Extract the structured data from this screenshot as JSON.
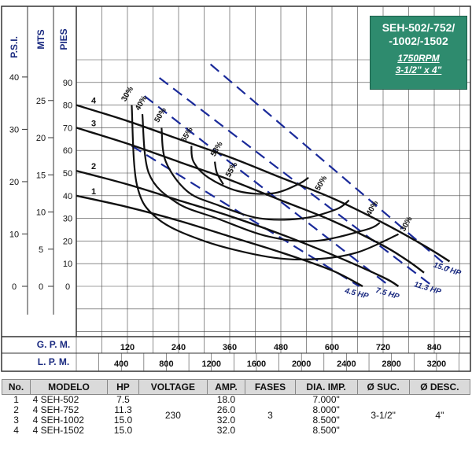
{
  "title": {
    "models": [
      "SEH-502/-752/",
      "-1002/-1502"
    ],
    "speed": "1750RPM",
    "size": "3-1/2\" x 4\""
  },
  "chart_data": {
    "type": "line",
    "y_axes": [
      {
        "label": "P.S.I.",
        "ticks": [
          0,
          10,
          20,
          30,
          40
        ]
      },
      {
        "label": "MTS",
        "ticks": [
          0,
          5,
          10,
          15,
          20,
          25
        ]
      },
      {
        "label": "PIES",
        "ticks": [
          0,
          10,
          20,
          30,
          40,
          50,
          60,
          70,
          80,
          90
        ]
      }
    ],
    "ylim": [
      0,
      102
    ],
    "x_axes": [
      {
        "label": "G. P. M.",
        "ticks": [
          120,
          240,
          360,
          480,
          600,
          720,
          840
        ]
      },
      {
        "label": "L. P. M.",
        "ticks": [
          400,
          800,
          1200,
          1600,
          2000,
          2400,
          2800,
          3200
        ]
      }
    ],
    "xlim_gpm": [
      0,
      960
    ],
    "grid": true,
    "series": [
      {
        "name": "1",
        "x": [
          0,
          120,
          240,
          360,
          480,
          600,
          672
        ],
        "y": [
          40,
          35,
          29,
          22,
          15,
          7,
          0
        ]
      },
      {
        "name": "2",
        "x": [
          0,
          120,
          240,
          360,
          480,
          600,
          720,
          756
        ],
        "y": [
          51,
          45,
          38,
          31,
          23,
          14,
          4,
          0
        ]
      },
      {
        "name": "3",
        "x": [
          0,
          120,
          240,
          360,
          480,
          600,
          720,
          780,
          816
        ],
        "y": [
          70,
          63,
          55,
          47,
          38,
          29,
          18,
          11,
          6
        ]
      },
      {
        "name": "4",
        "x": [
          0,
          120,
          240,
          360,
          480,
          600,
          720,
          816,
          876
        ],
        "y": [
          80,
          73,
          65,
          57,
          48,
          39,
          28,
          18,
          11
        ]
      }
    ],
    "efficiency_curves": [
      {
        "label": "30%",
        "x": [
          130,
          142,
          190,
          300,
          450,
          560,
          660,
          756
        ],
        "y": [
          80,
          45,
          30,
          20,
          13,
          12,
          15,
          23
        ]
      },
      {
        "label": "40%",
        "x": [
          155,
          170,
          235,
          330,
          450,
          560,
          680,
          712
        ],
        "y": [
          76,
          50,
          37,
          30,
          22,
          20,
          25,
          28
        ]
      },
      {
        "label": "50%",
        "x": [
          200,
          210,
          260,
          330,
          430,
          530,
          610,
          640
        ],
        "y": [
          70,
          55,
          42,
          36,
          30,
          30,
          34,
          38
        ]
      },
      {
        "label": "55%",
        "x": [
          270,
          275,
          310,
          380,
          460,
          520,
          545
        ],
        "y": [
          62,
          55,
          48,
          42,
          41,
          45,
          48
        ]
      },
      {
        "label": "58%",
        "x": [
          325,
          330,
          345
        ],
        "y": [
          55,
          50,
          45
        ]
      }
    ],
    "hp_lines": [
      {
        "label": "4.5 HP",
        "x": [
          130,
          664
        ],
        "y": [
          62,
          0
        ]
      },
      {
        "label": "7.5 HP",
        "x": [
          160,
          736
        ],
        "y": [
          84,
          0
        ]
      },
      {
        "label": "11.3 HP",
        "x": [
          195,
          830
        ],
        "y": [
          92,
          1
        ]
      },
      {
        "label": "15.0 HP",
        "x": [
          315,
          876
        ],
        "y": [
          98,
          8
        ]
      }
    ]
  },
  "table": {
    "headers": [
      "No.",
      "MODELO",
      "HP",
      "VOLTAGE",
      "AMP.",
      "FASES",
      "DIA. IMP.",
      "Ø SUC.",
      "Ø DESC."
    ],
    "rows": [
      [
        "1",
        "4 SEH-502",
        "7.5",
        "18.0",
        "7.000\""
      ],
      [
        "2",
        "4 SEH-752",
        "11.3",
        "26.0",
        "8.000\""
      ],
      [
        "3",
        "4 SEH-1002",
        "15.0",
        "32.0",
        "8.500\""
      ],
      [
        "4",
        "4 SEH-1502",
        "15.0",
        "32.0",
        "8.500\""
      ]
    ],
    "voltage": "230",
    "fases": "3",
    "suction": "3-1/2\"",
    "discharge": "4\""
  }
}
